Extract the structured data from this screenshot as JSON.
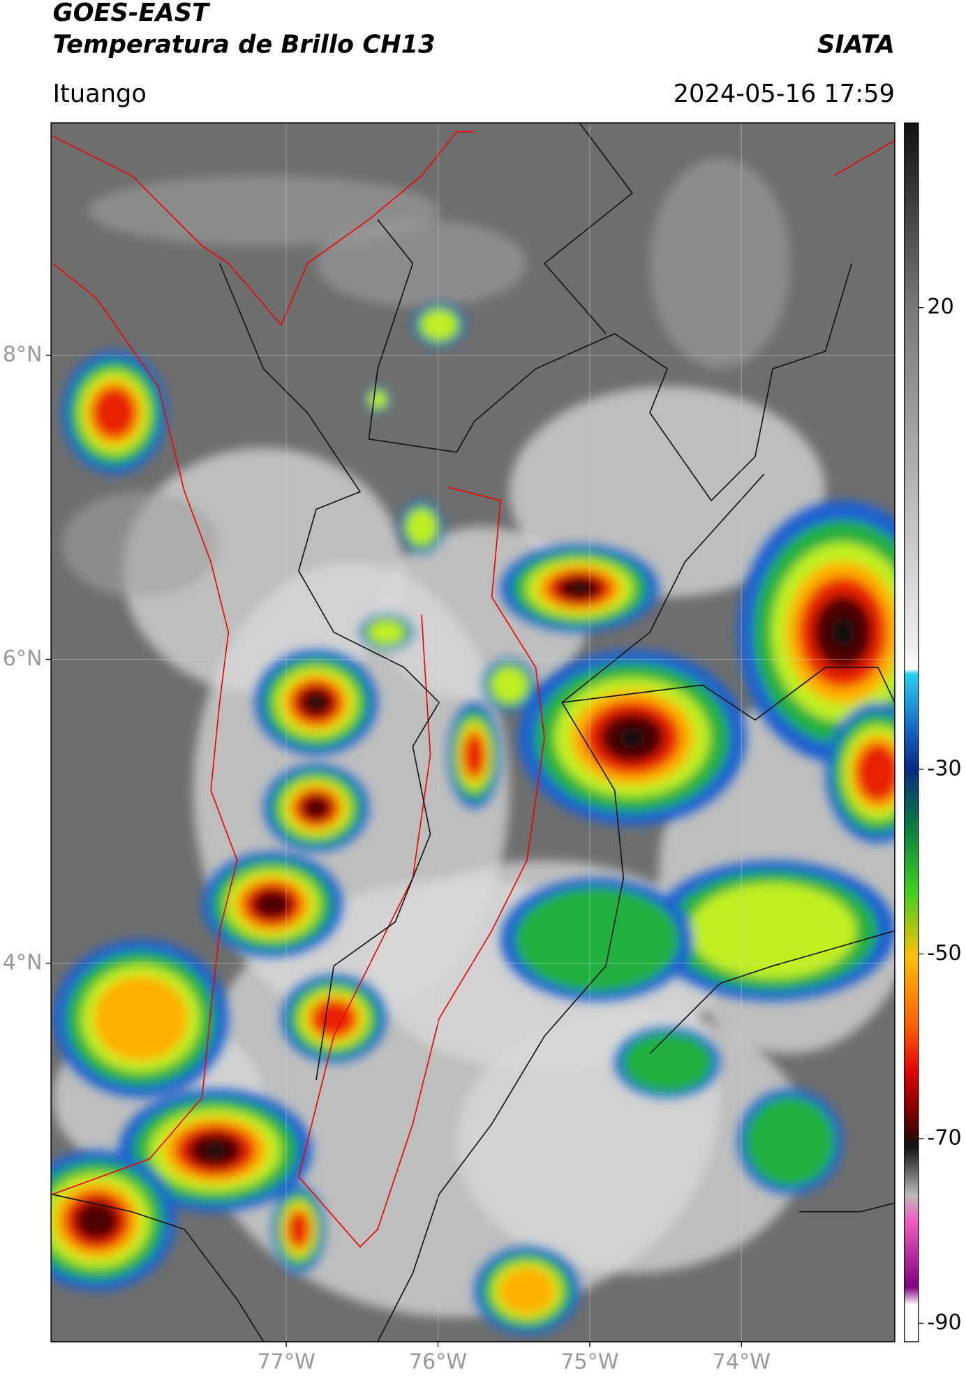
{
  "header": {
    "title": "GOES-EAST",
    "subtitle": "Temperatura de Brillo CH13",
    "source": "SIATA",
    "location": "Ituango",
    "datetime": "2024-05-16 17:59"
  },
  "map": {
    "xlim": [
      -78.55,
      -72.99
    ],
    "ylim": [
      1.51,
      9.53
    ],
    "xticks": [
      {
        "value": -77,
        "label": "77°W"
      },
      {
        "value": -76,
        "label": "76°W"
      },
      {
        "value": -75,
        "label": "75°W"
      },
      {
        "value": -74,
        "label": "74°W"
      }
    ],
    "yticks": [
      {
        "value": 8,
        "label": "8°N"
      },
      {
        "value": 6,
        "label": "6°N"
      },
      {
        "value": 4,
        "label": "4°N"
      }
    ],
    "grid": true
  },
  "colorbar": {
    "clim": [
      -92,
      40
    ],
    "ticks": [
      20,
      -30,
      -50,
      -70,
      -90
    ]
  }
}
